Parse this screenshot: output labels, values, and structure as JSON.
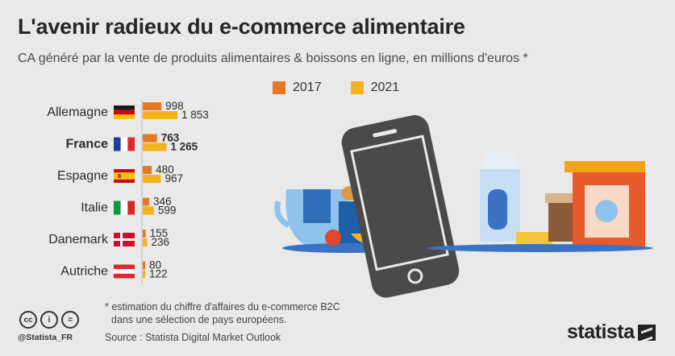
{
  "header": {
    "title": "L'avenir radieux du e-commerce alimentaire",
    "subtitle": "CA généré par la vente de produits alimentaires & boissons en ligne, en millions d'euros *"
  },
  "legend": [
    {
      "label": "2017",
      "color": "#e87722"
    },
    {
      "label": "2021",
      "color": "#f3b41b"
    }
  ],
  "chart_data": {
    "type": "bar",
    "orientation": "horizontal",
    "title": "L'avenir radieux du e-commerce alimentaire",
    "subtitle": "CA généré par la vente de produits alimentaires & boissons en ligne, en millions d'euros *",
    "categories": [
      "Allemagne",
      "France",
      "Espagne",
      "Italie",
      "Danemark",
      "Autriche"
    ],
    "highlighted_category": "France",
    "series": [
      {
        "name": "2017",
        "color": "#e87722",
        "values": [
          998,
          763,
          480,
          346,
          155,
          80
        ]
      },
      {
        "name": "2021",
        "color": "#f3b41b",
        "values": [
          1853,
          1265,
          967,
          599,
          236,
          122
        ]
      }
    ],
    "value_labels": {
      "2017": [
        "998",
        "763",
        "480",
        "346",
        "155",
        "80"
      ],
      "2021": [
        "1 853",
        "1 265",
        "967",
        "599",
        "236",
        "122"
      ]
    },
    "flags": [
      "germany-flag",
      "france-flag",
      "spain-flag",
      "italy-flag",
      "denmark-flag",
      "austria-flag"
    ],
    "legend_position": "top",
    "grid": false
  },
  "footer": {
    "footnote_line1": "* estimation du chiffre d'affaires du e-commerce B2C",
    "footnote_line2": "dans une sélection de pays européens.",
    "source": "Source : Statista Digital Market Outlook",
    "handle": "@Statista_FR",
    "brand": "statista"
  },
  "icons": [
    "cc-icon",
    "by-icon",
    "nd-icon",
    "smartphone-icon",
    "grocery-illustration"
  ]
}
